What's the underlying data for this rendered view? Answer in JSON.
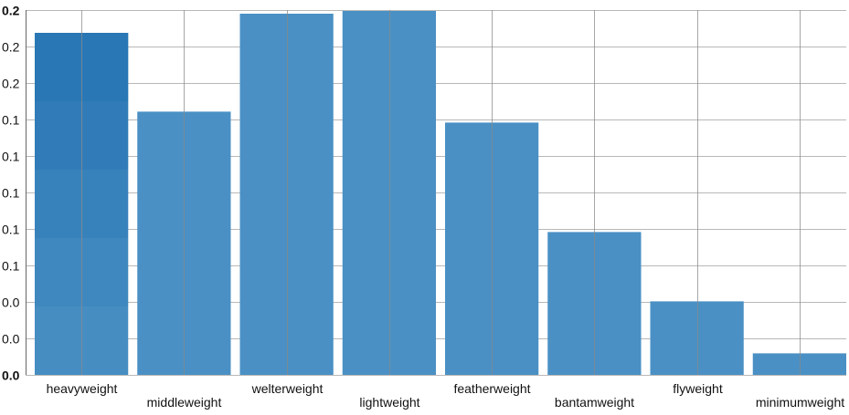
{
  "chart_data": {
    "type": "bar",
    "title": "",
    "xlabel": "",
    "ylabel": "",
    "categories": [
      "heavyweight",
      "middleweight",
      "welterweight",
      "lightweight",
      "featherweight",
      "bantamweight",
      "flyweight",
      "minimumweight"
    ],
    "values": [
      0.1875,
      0.1443,
      0.198,
      0.1995,
      0.1383,
      0.0783,
      0.0403,
      0.0118
    ],
    "ylim": [
      0,
      0.2
    ],
    "y_ticks": [
      0.0,
      0.02,
      0.04,
      0.06,
      0.08,
      0.1,
      0.12,
      0.14,
      0.16,
      0.18,
      0.2
    ],
    "y_tick_labels": [
      "0.0",
      "0.0",
      "0.0",
      "0.1",
      "0.1",
      "0.1",
      "0.1",
      "0.1",
      "0.2",
      "0.2",
      "0.2"
    ],
    "grid": true,
    "bar_color": "#4a90c4",
    "highlight_color": "#1f6fb0"
  }
}
